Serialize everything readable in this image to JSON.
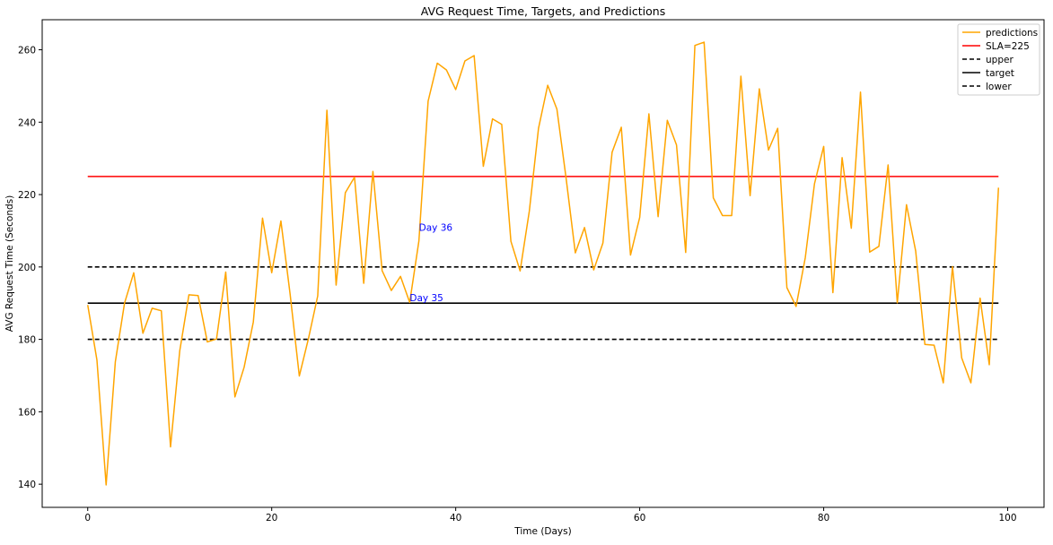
{
  "chart_data": {
    "type": "line",
    "title": "AVG Request Time, Targets, and Predictions",
    "xlabel": "Time (Days)",
    "ylabel": "AVG Request Time (Seconds)",
    "xlim": [
      -4.95,
      103.95
    ],
    "ylim": [
      133.6,
      268.3
    ],
    "xticks": [
      0,
      20,
      40,
      60,
      80,
      100
    ],
    "yticks": [
      140,
      160,
      180,
      200,
      220,
      240,
      260
    ],
    "grid": false,
    "legend_position": "top-right",
    "colors": {
      "predictions": "#ffa500",
      "sla": "#ff0000",
      "bands": "#000000",
      "target": "#000000",
      "annotation": "#0000ff"
    },
    "series": [
      {
        "name": "predictions",
        "style": "solid",
        "color": "#ffa500",
        "x": [
          0,
          1,
          2,
          3,
          4,
          5,
          6,
          7,
          8,
          9,
          10,
          11,
          12,
          13,
          14,
          15,
          16,
          17,
          18,
          19,
          20,
          21,
          22,
          23,
          24,
          25,
          26,
          27,
          28,
          29,
          30,
          31,
          32,
          33,
          34,
          35,
          36,
          37,
          38,
          39,
          40,
          41,
          42,
          43,
          44,
          45,
          46,
          47,
          48,
          49,
          50,
          51,
          52,
          53,
          54,
          55,
          56,
          57,
          58,
          59,
          60,
          61,
          62,
          63,
          64,
          65,
          66,
          67,
          68,
          69,
          70,
          71,
          72,
          73,
          74,
          75,
          76,
          77,
          78,
          79,
          80,
          81,
          82,
          83,
          84,
          85,
          86,
          87,
          88,
          89,
          90,
          91,
          92,
          93,
          94,
          95,
          96,
          97,
          98,
          99
        ],
        "values": [
          189.5,
          174.3,
          139.8,
          173.8,
          190,
          198.4,
          181.7,
          188.6,
          187.9,
          150.3,
          176.8,
          192.3,
          192.1,
          179.3,
          180.1,
          198.6,
          164.1,
          172.3,
          184.8,
          213.5,
          198.4,
          212.7,
          192.5,
          169.9,
          180.3,
          192,
          243.3,
          195,
          220.5,
          224.8,
          195.5,
          226.4,
          199,
          193.5,
          197.4,
          190.2,
          207.2,
          245.8,
          256.3,
          254.4,
          249,
          256.9,
          258.4,
          227.8,
          240.9,
          239.4,
          207.1,
          198.9,
          215.4,
          238.3,
          250.2,
          243.6,
          224.5,
          203.9,
          210.9,
          199.2,
          206.6,
          231.7,
          238.6,
          203.3,
          213.7,
          242.3,
          213.9,
          240.5,
          233.7,
          204,
          261.2,
          262.1,
          219.1,
          214.2,
          214.2,
          252.7,
          219.7,
          249.2,
          232.3,
          238.3,
          194.3,
          189.1,
          202.6,
          223,
          233.3,
          192.9,
          230.2,
          210.7,
          248.3,
          204.1,
          205.7,
          228.2,
          190.1,
          217.2,
          204.4,
          178.6,
          178.4,
          168,
          200.1,
          174.9,
          168,
          191.4,
          173,
          221.9
        ]
      },
      {
        "name": "SLA=225",
        "style": "solid",
        "color": "#ff0000",
        "x": [
          0,
          99
        ],
        "values": [
          225,
          225
        ]
      },
      {
        "name": "upper",
        "style": "dashed",
        "color": "#000000",
        "x": [
          0,
          99
        ],
        "values": [
          200,
          200
        ]
      },
      {
        "name": "target",
        "style": "solid",
        "color": "#000000",
        "x": [
          0,
          99
        ],
        "values": [
          190,
          190
        ]
      },
      {
        "name": "lower",
        "style": "dashed",
        "color": "#000000",
        "x": [
          0,
          99
        ],
        "values": [
          180,
          180
        ]
      }
    ],
    "annotations": [
      {
        "text": "Day 36",
        "x": 36,
        "y": 210
      },
      {
        "text": "Day 35",
        "x": 35,
        "y": 190.5
      }
    ]
  }
}
